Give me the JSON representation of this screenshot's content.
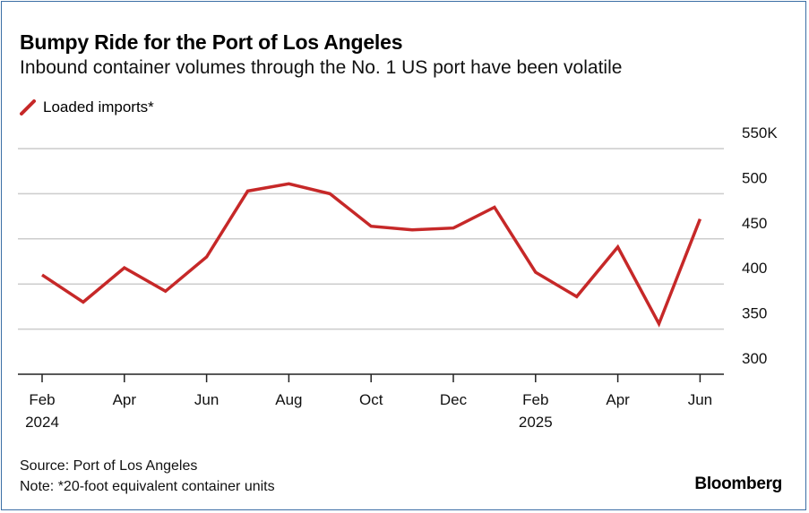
{
  "title": "Bumpy Ride for the Port of Los Angeles",
  "subtitle": "Inbound container volumes through the No. 1 US port have been volatile",
  "brand": "Bloomberg",
  "footer": {
    "source": "Source: Port of Los Angeles",
    "note": "Note: *20-foot equivalent container units"
  },
  "colors": {
    "line": "#c62828",
    "grid": "#cccccc",
    "axis": "#222222"
  },
  "chart_data": {
    "type": "line",
    "series": [
      {
        "name": "Loaded imports*",
        "x": [
          "2024-02",
          "2024-03",
          "2024-04",
          "2024-05",
          "2024-06",
          "2024-07",
          "2024-08",
          "2024-09",
          "2024-10",
          "2024-11",
          "2024-12",
          "2025-01",
          "2025-02",
          "2025-03",
          "2025-04",
          "2025-05",
          "2025-06"
        ],
        "values": [
          410,
          380,
          418,
          392,
          430,
          503,
          511,
          500,
          464,
          460,
          462,
          485,
          413,
          386,
          441,
          356,
          472
        ]
      }
    ],
    "y_ticks": [
      {
        "value": 550,
        "label": "550K"
      },
      {
        "value": 500,
        "label": "500"
      },
      {
        "value": 450,
        "label": "450"
      },
      {
        "value": 400,
        "label": "400"
      },
      {
        "value": 350,
        "label": "350"
      },
      {
        "value": 300,
        "label": "300"
      }
    ],
    "x_ticks": [
      {
        "index": 0,
        "label": "Feb",
        "sub": "2024"
      },
      {
        "index": 2,
        "label": "Apr",
        "sub": ""
      },
      {
        "index": 4,
        "label": "Jun",
        "sub": ""
      },
      {
        "index": 6,
        "label": "Aug",
        "sub": ""
      },
      {
        "index": 8,
        "label": "Oct",
        "sub": ""
      },
      {
        "index": 10,
        "label": "Dec",
        "sub": ""
      },
      {
        "index": 12,
        "label": "Feb",
        "sub": "2025"
      },
      {
        "index": 14,
        "label": "Apr",
        "sub": ""
      },
      {
        "index": 16,
        "label": "Jun",
        "sub": ""
      }
    ],
    "ylim": [
      300,
      550
    ],
    "grid": true,
    "legend_position": "top-left"
  }
}
